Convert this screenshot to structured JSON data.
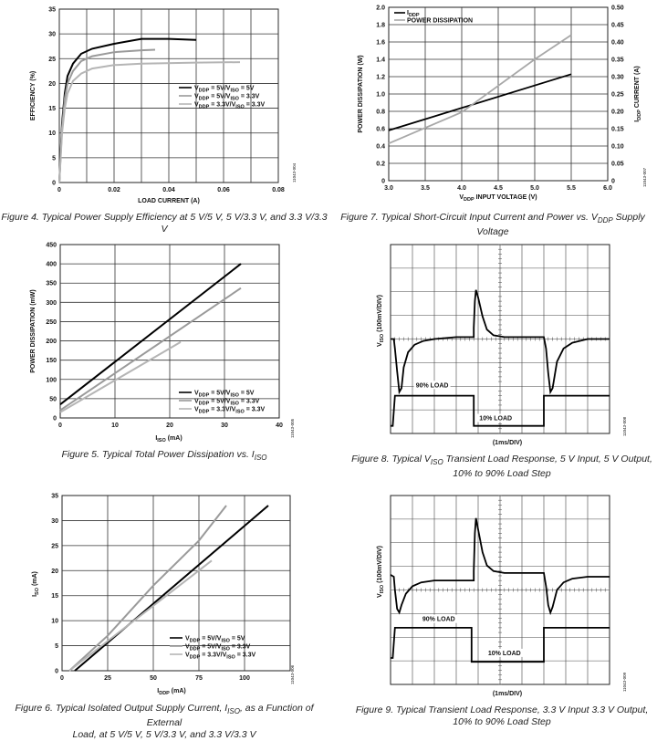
{
  "chart_data": [
    {
      "id": "fig4",
      "type": "line",
      "xlabel": "LOAD CURRENT (A)",
      "ylabel": "EFFICIENCY (%)",
      "xlim": [
        0,
        0.08
      ],
      "ylim": [
        0,
        35
      ],
      "xticks": [
        "0",
        "0.02",
        "0.04",
        "0.06",
        "0.08"
      ],
      "yticks": [
        "0",
        "5",
        "10",
        "15",
        "20",
        "25",
        "30",
        "35"
      ],
      "legend_position": "center-right",
      "series": [
        {
          "name": "VDDP = 5V/VISO = 5V",
          "color": "#000000",
          "x": [
            0,
            0.001,
            0.002,
            0.003,
            0.005,
            0.008,
            0.012,
            0.02,
            0.03,
            0.04,
            0.05
          ],
          "y": [
            0,
            12,
            18,
            21.5,
            24,
            26,
            27,
            28,
            29,
            29,
            28.8
          ]
        },
        {
          "name": "VDDP = 5V/VISO = 3.3V",
          "color": "#9a9a9a",
          "x": [
            0,
            0.001,
            0.002,
            0.003,
            0.005,
            0.008,
            0.012,
            0.02,
            0.03,
            0.035
          ],
          "y": [
            0,
            11,
            17,
            20,
            22.5,
            24.5,
            25.5,
            26.3,
            26.7,
            26.8
          ]
        },
        {
          "name": "VDDP = 3.3V/VISO = 3.3V",
          "color": "#b5b5b5",
          "x": [
            0,
            0.001,
            0.002,
            0.003,
            0.005,
            0.008,
            0.012,
            0.02,
            0.03,
            0.05,
            0.066
          ],
          "y": [
            0,
            10,
            15,
            18,
            20.5,
            22,
            23,
            23.7,
            24,
            24.2,
            24.3
          ]
        }
      ],
      "caption": "Figure 4. Typical Power Supply Efficiency at 5 V/5 V, 5 V/3.3 V, and 3.3 V/3.3 V",
      "code": "11043-004"
    },
    {
      "id": "fig7",
      "type": "line",
      "xlabel": "VDDP INPUT VOLTAGE (V)",
      "ylabel": "POWER DISSIPATION (W)",
      "y2label": "IDDP CURRENT (A)",
      "xlim": [
        3.0,
        6.0
      ],
      "ylim": [
        0,
        2.0
      ],
      "y2lim": [
        0,
        0.5
      ],
      "xticks": [
        "3.0",
        "3.5",
        "4.0",
        "4.5",
        "5.0",
        "5.5",
        "6.0"
      ],
      "yticks": [
        "0",
        "0.2",
        "0.4",
        "0.6",
        "0.8",
        "1.0",
        "1.2",
        "1.4",
        "1.6",
        "1.8",
        "2.0"
      ],
      "y2ticks": [
        "0",
        "0.05",
        "0.10",
        "0.15",
        "0.20",
        "0.25",
        "0.30",
        "0.35",
        "0.40",
        "0.45",
        "0.50"
      ],
      "legend_position": "top-left",
      "series": [
        {
          "name": "IDDP",
          "color": "#000000",
          "axis": "right",
          "x": [
            3.0,
            5.5
          ],
          "y": [
            0.145,
            0.307
          ]
        },
        {
          "name": "POWER DISSIPATION",
          "color": "#a8a8a8",
          "axis": "left",
          "x": [
            3.0,
            4.0,
            5.0,
            5.5
          ],
          "y": [
            0.43,
            0.79,
            1.4,
            1.68
          ]
        }
      ],
      "caption": "Figure 7. Typical Short-Circuit Input Current and Power vs. VDDP Supply Voltage",
      "code": "11043-007"
    },
    {
      "id": "fig5",
      "type": "line",
      "xlabel": "ISO (mA)",
      "ylabel": "POWER DISSIPATION (mW)",
      "xlim": [
        0,
        40
      ],
      "ylim": [
        0,
        450
      ],
      "xticks": [
        "0",
        "10",
        "20",
        "30",
        "40"
      ],
      "yticks": [
        "0",
        "50",
        "100",
        "150",
        "200",
        "250",
        "300",
        "350",
        "400",
        "450"
      ],
      "legend_position": "bottom-right",
      "series": [
        {
          "name": "VDDP = 5V/VISO = 5V",
          "color": "#000000",
          "x": [
            0,
            33
          ],
          "y": [
            35,
            400
          ]
        },
        {
          "name": "VDDP = 5V/VISO = 3.3V",
          "color": "#9a9a9a",
          "x": [
            0,
            33
          ],
          "y": [
            20,
            337
          ]
        },
        {
          "name": "VDDP = 3.3V/VISO = 3.3V",
          "color": "#b5b5b5",
          "x": [
            0,
            22
          ],
          "y": [
            15,
            197
          ]
        }
      ],
      "caption": "Figure 5. Typical Total Power Dissipation vs. ISO",
      "code": "11043-005"
    },
    {
      "id": "fig8",
      "type": "line",
      "ylabel": "VISO (100mV/DIV)",
      "xlabel": "(1ms/DIV)",
      "annotations": [
        "90% LOAD",
        "10% LOAD"
      ],
      "caption": "Figure 8. Typical VISO Transient Load Response, 5 V Input, 5 V Output, 10% to 90% Load Step",
      "code": "11043-008"
    },
    {
      "id": "fig6",
      "type": "line",
      "xlabel": "IDDP (mA)",
      "ylabel": "ISO (mA)",
      "xlim": [
        0,
        125
      ],
      "ylim": [
        0,
        35
      ],
      "xticks": [
        "0",
        "25",
        "50",
        "75",
        "100"
      ],
      "yticks": [
        "0",
        "5",
        "10",
        "15",
        "20",
        "25",
        "30",
        "35"
      ],
      "legend_position": "bottom-right",
      "series": [
        {
          "name": "VDDP = 5V/VISO = 5V",
          "color": "#000000",
          "x": [
            7,
            113
          ],
          "y": [
            0,
            33
          ]
        },
        {
          "name": "VDDP = 5V/VISO = 3.3V",
          "color": "#9a9a9a",
          "x": [
            4,
            25,
            50,
            75,
            90
          ],
          "y": [
            0,
            7,
            17,
            26,
            33
          ]
        },
        {
          "name": "VDDP = 3.3V/VISO = 3.3V",
          "color": "#b5b5b5",
          "x": [
            4,
            82
          ],
          "y": [
            0,
            22
          ]
        }
      ],
      "caption": "Figure 6. Typical Isolated Output Supply Current, ISO, as a Function of External Load, at 5 V/5 V, 5 V/3.3 V, and 3.3 V/3.3 V",
      "code": "11043-006"
    },
    {
      "id": "fig9",
      "type": "line",
      "ylabel": "VISO (100mV/DIV)",
      "xlabel": "(1ms/DIV)",
      "annotations": [
        "90% LOAD",
        "10% LOAD"
      ],
      "caption": "Figure 9. Typical Transient Load Response, 3.3 V Input 3.3 V Output, 10% to 90% Load Step",
      "code": "11043-009"
    }
  ]
}
